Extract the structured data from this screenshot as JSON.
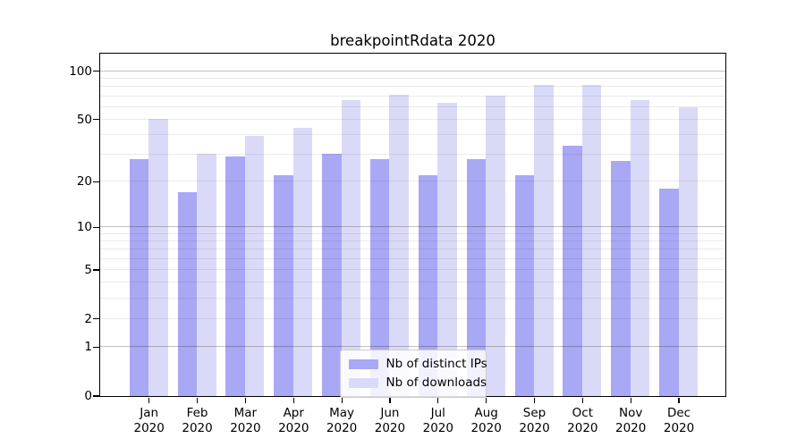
{
  "chart_data": {
    "type": "bar",
    "title": "breakpointRdata 2020",
    "year_label": "2020",
    "categories": [
      "Jan",
      "Feb",
      "Mar",
      "Apr",
      "May",
      "Jun",
      "Jul",
      "Aug",
      "Sep",
      "Oct",
      "Nov",
      "Dec"
    ],
    "series": [
      {
        "name": "Nb of distinct IPs",
        "color": "#a8a8f5",
        "values": [
          28,
          17,
          29,
          22,
          30,
          28,
          22,
          28,
          22,
          34,
          27,
          18
        ]
      },
      {
        "name": "Nb of downloads",
        "color": "#dadaf8",
        "values": [
          50,
          30,
          39,
          44,
          66,
          71,
          63,
          70,
          82,
          82,
          66,
          59
        ]
      }
    ],
    "xlabel": "",
    "ylabel": "",
    "yscale": "log1p",
    "ylim": [
      0,
      129
    ],
    "yticks": [
      0,
      1,
      2,
      5,
      10,
      20,
      50,
      100
    ],
    "major_gridlines": [
      1,
      10,
      100
    ],
    "minor_gridlines": [
      2,
      3,
      4,
      5,
      6,
      7,
      8,
      9,
      20,
      30,
      40,
      50,
      60,
      70,
      80,
      90
    ],
    "grid": true,
    "legend_position": "lower-center",
    "axis_color": "#000000",
    "background_color": "#ffffff"
  }
}
